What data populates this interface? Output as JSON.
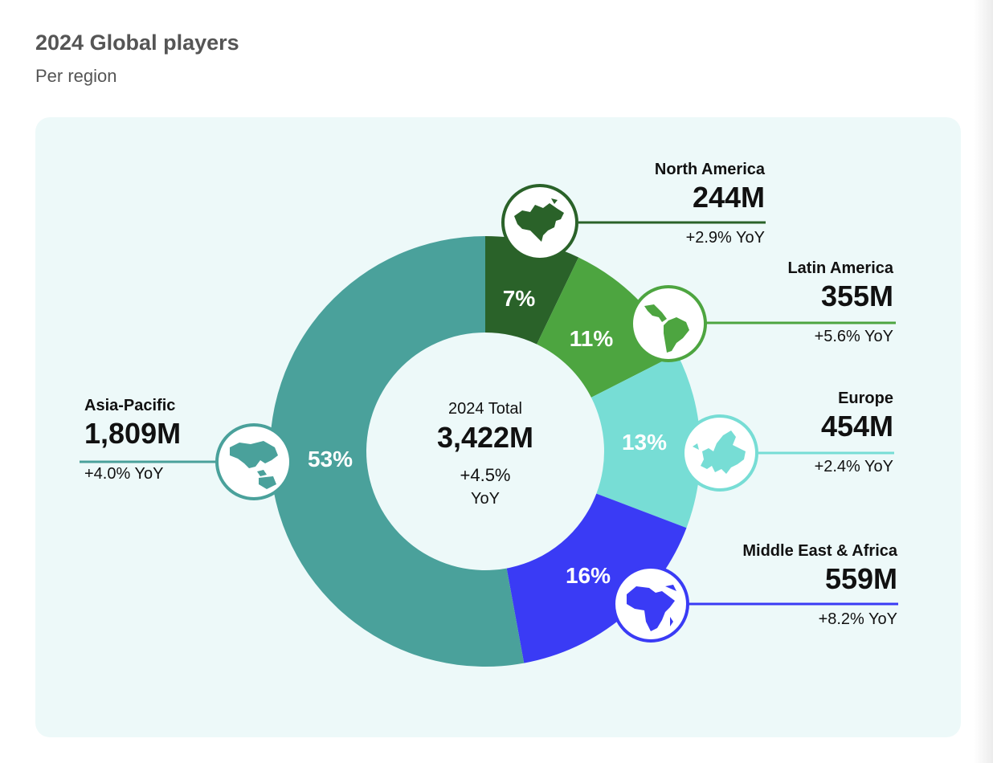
{
  "header": {
    "title": "2024 Global players",
    "subtitle": "Per region"
  },
  "center": {
    "label": "2024 Total",
    "value": "3,422M",
    "yoy_line1": "+4.5%",
    "yoy_line2": "YoY"
  },
  "regions": {
    "north_america": {
      "name": "North America",
      "value": "244M",
      "yoy": "+2.9% YoY",
      "pct_label": "7%",
      "icon": "north-america-map-icon",
      "color": "#2a6229"
    },
    "latin_america": {
      "name": "Latin America",
      "value": "355M",
      "yoy": "+5.6% YoY",
      "pct_label": "11%",
      "icon": "south-america-map-icon",
      "color": "#4da540"
    },
    "europe": {
      "name": "Europe",
      "value": "454M",
      "yoy": "+2.4% YoY",
      "pct_label": "13%",
      "icon": "europe-map-icon",
      "color": "#77ddd5"
    },
    "mea": {
      "name": "Middle East & Africa",
      "value": "559M",
      "yoy": "+8.2% YoY",
      "pct_label": "16%",
      "icon": "africa-map-icon",
      "color": "#3a3bf5"
    },
    "asia_pacific": {
      "name": "Asia-Pacific",
      "value": "1,809M",
      "yoy": "+4.0% YoY",
      "pct_label": "53%",
      "icon": "asia-pacific-map-icon",
      "color": "#4aa19b"
    }
  },
  "chart_data": {
    "type": "pie",
    "title": "2024 Global players",
    "subtitle": "Per region",
    "total": 3422,
    "categories": [
      "North America",
      "Latin America",
      "Europe",
      "Middle East & Africa",
      "Asia-Pacific"
    ],
    "values": [
      244,
      355,
      454,
      559,
      1809
    ],
    "percent": [
      7,
      11,
      13,
      16,
      53
    ],
    "yoy_percent": [
      2.9,
      5.6,
      2.4,
      8.2,
      4.0
    ],
    "colors": [
      "#2a6229",
      "#4da540",
      "#77ddd5",
      "#3a3bf5",
      "#4aa19b"
    ]
  }
}
